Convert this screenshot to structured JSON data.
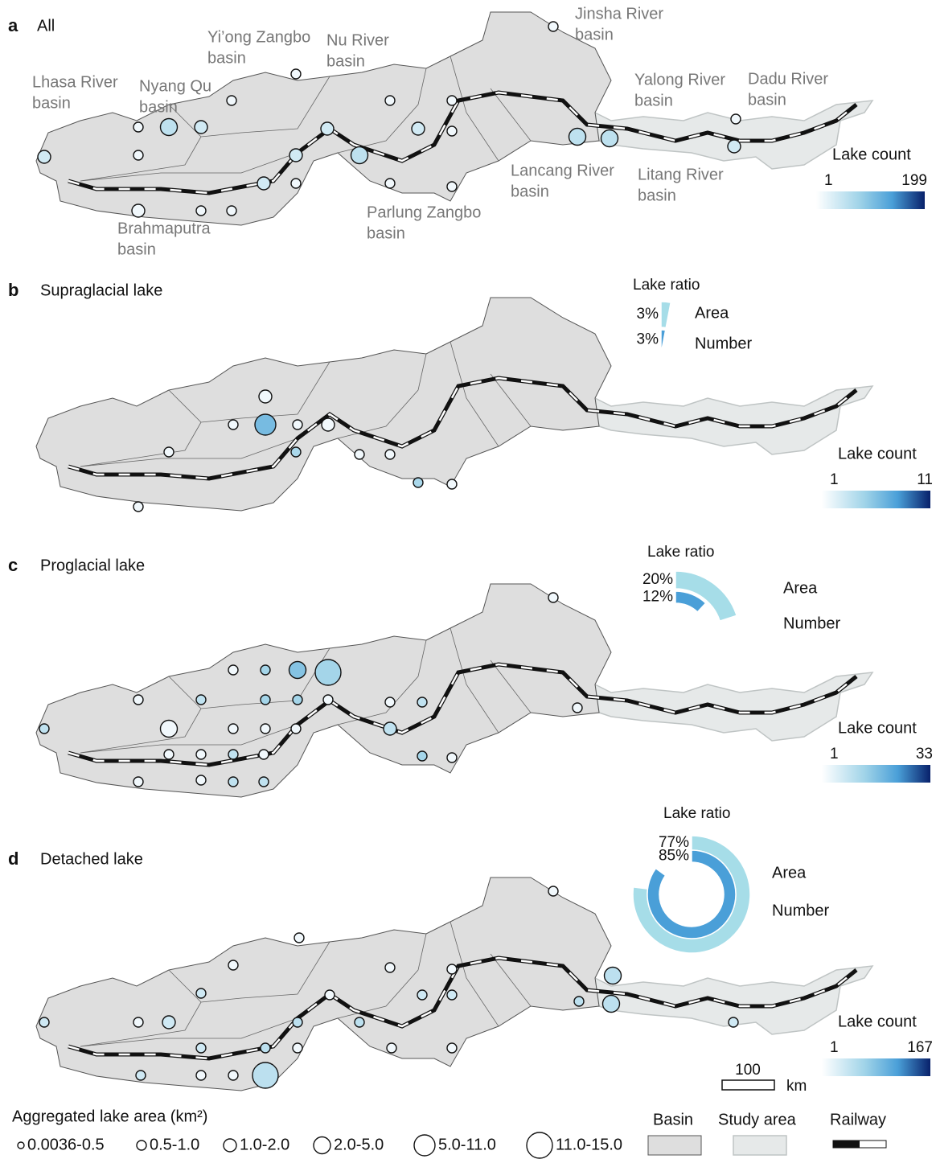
{
  "panels": [
    {
      "label": "a",
      "title": "All",
      "count_legend": {
        "title": "Lake count",
        "range": [
          1,
          199
        ]
      },
      "markers": [
        [
          2,
          2
        ],
        [
          1,
          1
        ],
        [
          1,
          1
        ],
        [
          1,
          2
        ],
        [
          3,
          3
        ],
        [
          3,
          60
        ],
        [
          3,
          80
        ],
        [
          2,
          2
        ],
        [
          4,
          160
        ],
        [
          3,
          30
        ],
        [
          1,
          1
        ],
        [
          1,
          1
        ],
        [
          4,
          110
        ],
        [
          4,
          50
        ],
        [
          4,
          20
        ],
        [
          1,
          1
        ],
        [
          3,
          30
        ],
        [
          5,
          20
        ],
        [
          4,
          50
        ],
        [
          2,
          2
        ],
        [
          3,
          15
        ],
        [
          1,
          1
        ],
        [
          4,
          40
        ],
        [
          4,
          15
        ],
        [
          2,
          2
        ],
        [
          1,
          1
        ],
        [
          4,
          50
        ],
        [
          2,
          2
        ],
        [
          4,
          8
        ],
        [
          4,
          100
        ],
        [
          3,
          3
        ],
        [
          1,
          1
        ],
        [
          4,
          50
        ],
        [
          4,
          40
        ],
        [
          1,
          1
        ],
        [
          2,
          2
        ],
        [
          4,
          199
        ],
        [
          5,
          15
        ],
        [
          1,
          1
        ],
        [
          1,
          1
        ],
        [
          4,
          140
        ],
        [
          1,
          1
        ],
        [
          1,
          1
        ],
        [
          3,
          3
        ],
        [
          3,
          10
        ],
        [
          3,
          3
        ],
        [
          1,
          1
        ],
        [
          2,
          2
        ]
      ]
    },
    {
      "label": "b",
      "title": "Supraglacial lake",
      "count_legend": {
        "title": "Lake count",
        "range": [
          1,
          11
        ]
      },
      "ratio": {
        "title": "Lake ratio",
        "series": [
          {
            "name": "Area",
            "value": 3,
            "value_label": "3%",
            "color": "#a6dde8"
          },
          {
            "name": "Number",
            "value": 3,
            "value_label": "3%",
            "color": "#4a9fd8"
          }
        ]
      },
      "markers": [
        [
          1,
          2
        ],
        [
          3,
          8
        ],
        [
          2,
          7
        ],
        [
          1,
          1
        ],
        [
          3,
          4
        ],
        [
          1,
          1
        ],
        [
          1,
          2
        ],
        [
          1,
          11
        ],
        [
          1,
          1
        ],
        [
          2,
          1
        ],
        [
          1,
          1
        ],
        [
          1,
          1
        ],
        [
          2,
          1
        ],
        [
          1,
          1
        ],
        [
          1,
          1
        ]
      ]
    },
    {
      "label": "c",
      "title": "Proglacial lake",
      "count_legend": {
        "title": "Lake count",
        "range": [
          1,
          33
        ]
      },
      "ratio": {
        "title": "Lake ratio",
        "series": [
          {
            "name": "Area",
            "value": 20,
            "value_label": "20%",
            "color": "#a6dde8"
          },
          {
            "name": "Number",
            "value": 12,
            "value_label": "12%",
            "color": "#4a9fd8"
          }
        ]
      },
      "markers": [
        [
          1,
          1
        ],
        [
          1,
          1
        ],
        [
          3,
          1
        ],
        [
          4,
          3
        ],
        [
          3,
          5
        ],
        [
          1,
          1
        ],
        [
          2,
          1
        ],
        [
          3,
          15
        ],
        [
          3,
          1
        ],
        [
          3,
          1
        ],
        [
          1,
          1
        ],
        [
          3,
          8
        ],
        [
          1,
          1
        ],
        [
          2,
          1
        ],
        [
          1,
          1
        ],
        [
          2,
          1
        ],
        [
          1,
          3
        ],
        [
          2,
          13
        ],
        [
          1,
          1
        ],
        [
          1,
          1
        ],
        [
          1,
          1
        ],
        [
          2,
          2
        ],
        [
          3,
          33
        ],
        [
          2,
          16
        ],
        [
          1,
          1
        ],
        [
          1,
          1
        ],
        [
          2,
          1
        ],
        [
          1,
          1
        ],
        [
          3,
          1
        ],
        [
          1,
          1
        ],
        [
          1,
          1
        ],
        [
          1,
          1
        ],
        [
          2,
          1
        ],
        [
          2,
          1
        ]
      ]
    },
    {
      "label": "d",
      "title": "Detached lake",
      "count_legend": {
        "title": "Lake count",
        "range": [
          1,
          167
        ]
      },
      "ratio": {
        "title": "Lake ratio",
        "series": [
          {
            "name": "Area",
            "value": 77,
            "value_label": "77%",
            "color": "#a6dde8"
          },
          {
            "name": "Number",
            "value": 85,
            "value_label": "85%",
            "color": "#4a9fd8"
          }
        ]
      },
      "markers": [
        [
          0,
          1
        ],
        [
          1,
          1
        ],
        [
          1,
          1
        ],
        [
          3,
          10
        ],
        [
          3,
          12
        ],
        [
          3,
          8
        ],
        [
          1,
          1
        ],
        [
          3,
          20
        ],
        [
          2,
          1
        ],
        [
          4,
          50
        ],
        [
          4,
          20
        ],
        [
          5,
          10
        ],
        [
          1,
          1
        ],
        [
          4,
          60
        ],
        [
          4,
          50
        ],
        [
          2,
          1
        ],
        [
          2,
          1
        ],
        [
          1,
          1
        ],
        [
          3,
          3
        ],
        [
          3,
          1
        ],
        [
          3,
          3
        ],
        [
          2,
          1
        ],
        [
          1,
          1
        ],
        [
          2,
          2
        ],
        [
          3,
          120
        ],
        [
          4,
          30
        ],
        [
          4,
          20
        ],
        [
          3,
          1
        ],
        [
          3,
          1
        ],
        [
          3,
          20
        ],
        [
          5,
          167
        ],
        [
          4,
          110
        ],
        [
          2,
          1
        ],
        [
          3,
          60
        ],
        [
          2,
          1
        ],
        [
          4,
          10
        ],
        [
          3,
          1
        ],
        [
          1,
          1
        ],
        [
          1,
          1
        ],
        [
          4,
          15
        ],
        [
          1,
          1
        ],
        [
          2,
          1
        ],
        [
          1,
          1
        ],
        [
          1,
          1
        ],
        [
          3,
          5
        ]
      ]
    }
  ],
  "basins": [
    {
      "lines": [
        "Lhasa River",
        "basin"
      ]
    },
    {
      "lines": [
        "Nyang Qu",
        "basin"
      ]
    },
    {
      "lines": [
        "Yi’ong Zangbo",
        "basin"
      ]
    },
    {
      "lines": [
        "Nu River",
        "basin"
      ]
    },
    {
      "lines": [
        "Jinsha River",
        "basin"
      ]
    },
    {
      "lines": [
        "Yalong River",
        "basin"
      ]
    },
    {
      "lines": [
        "Dadu River",
        "basin"
      ]
    },
    {
      "lines": [
        "Lancang River",
        "basin"
      ]
    },
    {
      "lines": [
        "Litang River",
        "basin"
      ]
    },
    {
      "lines": [
        "Parlung Zangbo",
        "basin"
      ]
    },
    {
      "lines": [
        "Brahmaputra",
        "basin"
      ]
    }
  ],
  "legend": {
    "area_title": "Aggregated lake area (km²)",
    "area_classes": [
      "0.0036-0.5",
      "0.5-1.0",
      "1.0-2.0",
      "2.0-5.0",
      "5.0-11.0",
      "11.0-15.0"
    ],
    "basin": "Basin",
    "study_area": "Study area",
    "railway": "Railway",
    "scale_value": 100,
    "scale_unit": "km"
  }
}
